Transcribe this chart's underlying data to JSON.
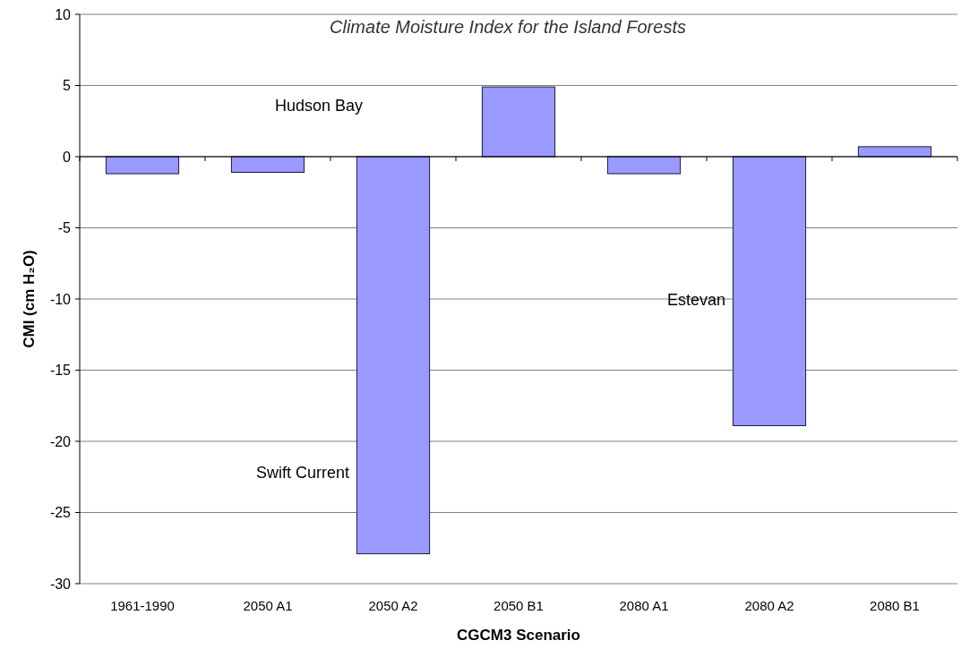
{
  "chart_data": {
    "type": "bar",
    "title": "Climate Moisture Index for the Island Forests",
    "xlabel": "CGCM3 Scenario",
    "ylabel": "CMI (cm H₂O)",
    "categories": [
      "1961-1990",
      "2050 A1",
      "2050 A2",
      "2050 B1",
      "2080 A1",
      "2080 A2",
      "2080 B1"
    ],
    "values": [
      -1.2,
      -1.1,
      -27.9,
      4.9,
      -1.2,
      -18.9,
      0.7
    ],
    "color": "#9999ff",
    "ylim": [
      -30,
      10
    ],
    "yticks": [
      -30,
      -25,
      -20,
      -15,
      -10,
      -5,
      0,
      5,
      10
    ],
    "grid": "y",
    "annotations": [
      "Hudson Bay",
      "Swift Current",
      "Estevan"
    ]
  }
}
